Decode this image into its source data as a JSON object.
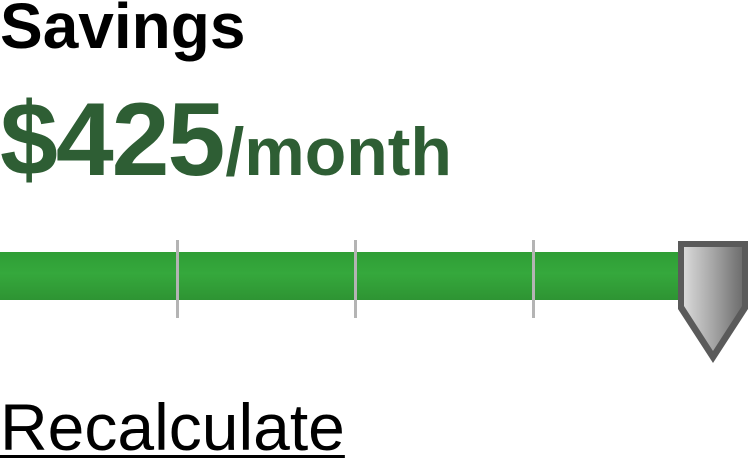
{
  "header": {
    "title": "Savings"
  },
  "savings": {
    "amount": "$425",
    "unit": "/month"
  },
  "slider": {
    "value_fraction": 0.953,
    "tick_count": 3,
    "fill_color": "#33a33a",
    "tick_color": "#b4b4b4",
    "thumb_color": "#8c8c8c"
  },
  "actions": {
    "recalculate_label": "Recalculate"
  },
  "colors": {
    "amount_text": "#2e5e34",
    "title_text": "#000000"
  }
}
